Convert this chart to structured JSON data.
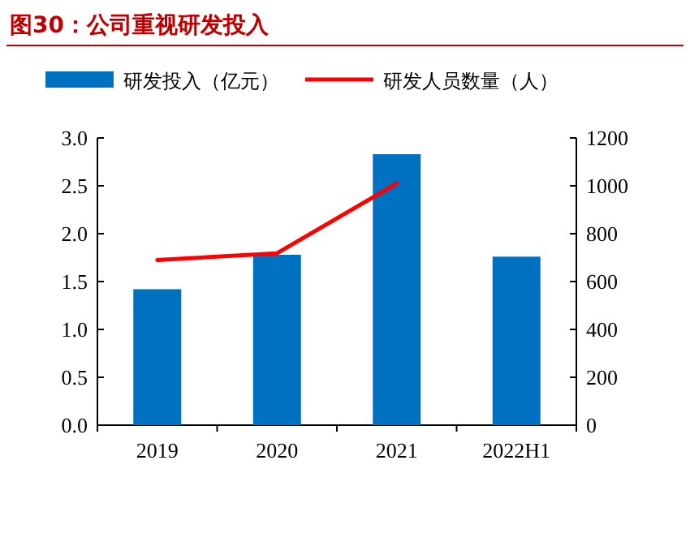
{
  "chart_data": {
    "type": "bar",
    "title": "图30：公司重视研发投入",
    "categories": [
      "2019",
      "2020",
      "2021",
      "2022H1"
    ],
    "series": [
      {
        "name": "研发投入（亿元）",
        "color": "#0070c0",
        "values": [
          1.42,
          1.78,
          2.83,
          1.76
        ]
      },
      {
        "name": "研发人员数量（人）",
        "type": "line",
        "axis": "y2",
        "color": "#ff0000",
        "values": [
          690,
          718,
          1010,
          null
        ]
      }
    ],
    "ylim": [
      0,
      3
    ],
    "yticks": [
      {
        "value": 0,
        "label": "0.0"
      },
      {
        "value": 0.5,
        "label": "0.5"
      },
      {
        "value": 1,
        "label": "1.0"
      },
      {
        "value": 1.5,
        "label": "1.5"
      },
      {
        "value": 2,
        "label": "2.0"
      },
      {
        "value": 2.5,
        "label": "2.5"
      },
      {
        "value": 3,
        "label": "3.0"
      }
    ],
    "y2lim": [
      0,
      1200
    ],
    "y2ticks": [
      0,
      200,
      400,
      600,
      800,
      1000,
      1200
    ],
    "legend": "top"
  }
}
